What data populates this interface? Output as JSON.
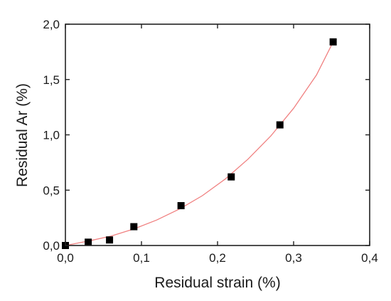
{
  "chart_data": {
    "type": "scatter",
    "title": "",
    "xlabel": "Residual strain (%)",
    "ylabel": "Residual Ar (%)",
    "xlim": [
      0.0,
      0.4
    ],
    "ylim": [
      0.0,
      2.0
    ],
    "x_ticks": [
      0.0,
      0.1,
      0.2,
      0.3,
      0.4
    ],
    "y_ticks": [
      0.0,
      0.5,
      1.0,
      1.5,
      2.0
    ],
    "x_tick_labels": [
      "0,0",
      "0,1",
      "0,2",
      "0,3",
      "0,4"
    ],
    "y_tick_labels": [
      "0,0",
      "0,5",
      "1,0",
      "1,5",
      "2,0"
    ],
    "grid": false,
    "legend": false,
    "series": [
      {
        "marker": "square",
        "color": "#000000",
        "points": [
          {
            "x": 0.0,
            "y": 0.0
          },
          {
            "x": 0.03,
            "y": 0.03
          },
          {
            "x": 0.058,
            "y": 0.05
          },
          {
            "x": 0.09,
            "y": 0.17
          },
          {
            "x": 0.152,
            "y": 0.36
          },
          {
            "x": 0.218,
            "y": 0.62
          },
          {
            "x": 0.282,
            "y": 1.09
          },
          {
            "x": 0.352,
            "y": 1.84
          }
        ]
      }
    ],
    "fit_curve": {
      "color": "#f08080",
      "x_range": [
        0.0,
        0.352
      ],
      "points": [
        {
          "x": 0.0,
          "y": 0.0
        },
        {
          "x": 0.03,
          "y": 0.04
        },
        {
          "x": 0.06,
          "y": 0.085
        },
        {
          "x": 0.09,
          "y": 0.15
        },
        {
          "x": 0.12,
          "y": 0.23
        },
        {
          "x": 0.15,
          "y": 0.33
        },
        {
          "x": 0.18,
          "y": 0.45
        },
        {
          "x": 0.21,
          "y": 0.6
        },
        {
          "x": 0.24,
          "y": 0.78
        },
        {
          "x": 0.27,
          "y": 0.99
        },
        {
          "x": 0.3,
          "y": 1.24
        },
        {
          "x": 0.33,
          "y": 1.54
        },
        {
          "x": 0.352,
          "y": 1.84
        }
      ]
    }
  }
}
